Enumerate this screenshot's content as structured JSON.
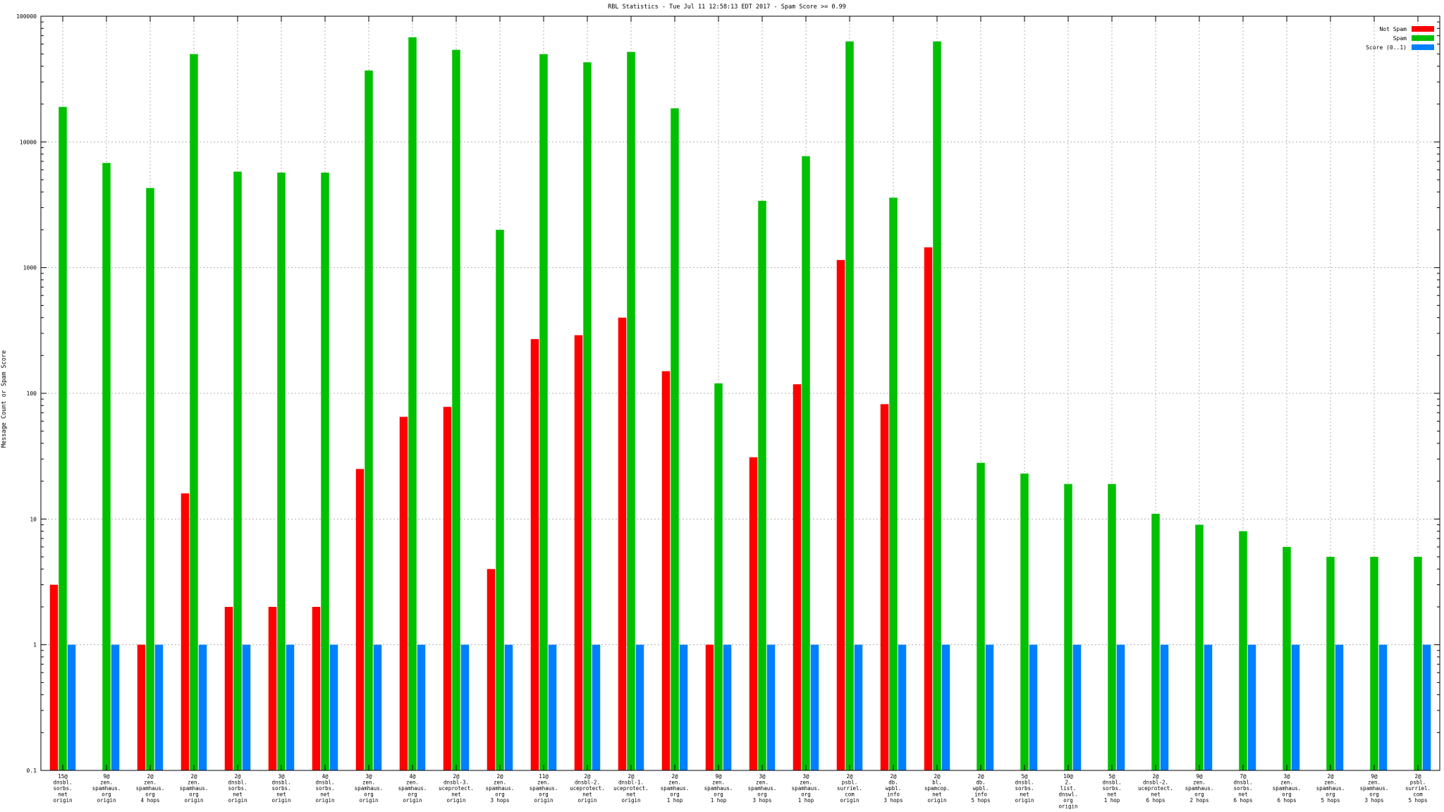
{
  "chart_data": {
    "type": "bar",
    "title": "RBL Statistics - Tue Jul 11 12:58:13 EDT 2017 - Spam Score >= 0.99",
    "ylabel": "Message Count or Spam Score",
    "xlabel": "",
    "yscale": "log",
    "ylim": [
      0.1,
      100000
    ],
    "yticks": [
      {
        "value": 0.1,
        "label": "0.1"
      },
      {
        "value": 1,
        "label": "1"
      },
      {
        "value": 10,
        "label": "10"
      },
      {
        "value": 100,
        "label": "100"
      },
      {
        "value": 1000,
        "label": "1000"
      },
      {
        "value": 10000,
        "label": "10000"
      },
      {
        "value": 100000,
        "label": "100000"
      }
    ],
    "grid": true,
    "legend_position": "top-right",
    "categories": [
      [
        "15@",
        "dnsbl.",
        "sorbs.",
        "net",
        "origin"
      ],
      [
        "9@",
        "zen.",
        "spamhaus.",
        "org",
        "origin"
      ],
      [
        "2@",
        "zen.",
        "spamhaus.",
        "org",
        "4 hops"
      ],
      [
        "2@",
        "zen.",
        "spamhaus.",
        "org",
        "origin"
      ],
      [
        "2@",
        "dnsbl.",
        "sorbs.",
        "net",
        "origin"
      ],
      [
        "3@",
        "dnsbl.",
        "sorbs.",
        "net",
        "origin"
      ],
      [
        "4@",
        "dnsbl.",
        "sorbs.",
        "net",
        "origin"
      ],
      [
        "3@",
        "zen.",
        "spamhaus.",
        "org",
        "origin"
      ],
      [
        "4@",
        "zen.",
        "spamhaus.",
        "org",
        "origin"
      ],
      [
        "2@",
        "dnsbl-3.",
        "uceprotect.",
        "net",
        "origin"
      ],
      [
        "2@",
        "zen.",
        "spamhaus.",
        "org",
        "3 hops"
      ],
      [
        "11@",
        "zen.",
        "spamhaus.",
        "org",
        "origin"
      ],
      [
        "2@",
        "dnsbl-2.",
        "uceprotect.",
        "net",
        "origin"
      ],
      [
        "2@",
        "dnsbl-1.",
        "uceprotect.",
        "net",
        "origin"
      ],
      [
        "2@",
        "zen.",
        "spamhaus.",
        "org",
        "1 hop"
      ],
      [
        "9@",
        "zen.",
        "spamhaus.",
        "org",
        "1 hop"
      ],
      [
        "3@",
        "zen.",
        "spamhaus.",
        "org",
        "3 hops"
      ],
      [
        "3@",
        "zen.",
        "spamhaus.",
        "org",
        "1 hop"
      ],
      [
        "2@",
        "psbl.",
        "surriel.",
        "com",
        "origin"
      ],
      [
        "2@",
        "db.",
        "wpbl.",
        "info",
        "3 hops"
      ],
      [
        "2@",
        "bl.",
        "spamcop.",
        "net",
        "origin"
      ],
      [
        "2@",
        "db.",
        "wpbl.",
        "info",
        "5 hops"
      ],
      [
        "5@",
        "dnsbl.",
        "sorbs.",
        "net",
        "origin"
      ],
      [
        "10@",
        "2.",
        "list.",
        "dnswl.",
        "org",
        "origin"
      ],
      [
        "5@",
        "dnsbl.",
        "sorbs.",
        "net",
        "1 hop"
      ],
      [
        "2@",
        "dnsbl-2.",
        "uceprotect.",
        "net",
        "6 hops"
      ],
      [
        "9@",
        "zen.",
        "spamhaus.",
        "org",
        "2 hops"
      ],
      [
        "7@",
        "dnsbl.",
        "sorbs.",
        "net",
        "6 hops"
      ],
      [
        "3@",
        "zen.",
        "spamhaus.",
        "org",
        "6 hops"
      ],
      [
        "2@",
        "zen.",
        "spamhaus.",
        "org",
        "5 hops"
      ],
      [
        "9@",
        "zen.",
        "spamhaus.",
        "org",
        "3 hops"
      ],
      [
        "2@",
        "psbl.",
        "surriel.",
        "com",
        "5 hops"
      ]
    ],
    "series": [
      {
        "name": "Not Spam",
        "color": "#ff0000",
        "values": [
          3,
          null,
          1,
          16,
          2,
          2,
          2,
          25,
          65,
          78,
          4,
          270,
          290,
          400,
          150,
          1,
          31,
          118,
          1150,
          82,
          1450,
          null,
          null,
          null,
          null,
          null,
          null,
          null,
          null,
          null,
          null,
          null
        ]
      },
      {
        "name": "Spam",
        "color": "#00c000",
        "values": [
          19000,
          6800,
          4300,
          50000,
          5800,
          5700,
          5700,
          37000,
          68000,
          54000,
          2000,
          50000,
          43000,
          52000,
          18500,
          120,
          3400,
          7700,
          63000,
          3600,
          63000,
          28,
          23,
          19,
          19,
          11,
          9,
          8,
          6,
          5,
          5,
          5
        ]
      },
      {
        "name": "Score (0..1)",
        "color": "#0080ff",
        "values": [
          1,
          1,
          1,
          1,
          1,
          1,
          1,
          1,
          1,
          1,
          1,
          1,
          1,
          1,
          1,
          1,
          1,
          1,
          1,
          1,
          1,
          1,
          1,
          1,
          1,
          1,
          1,
          1,
          1,
          1,
          1,
          1
        ]
      }
    ]
  }
}
